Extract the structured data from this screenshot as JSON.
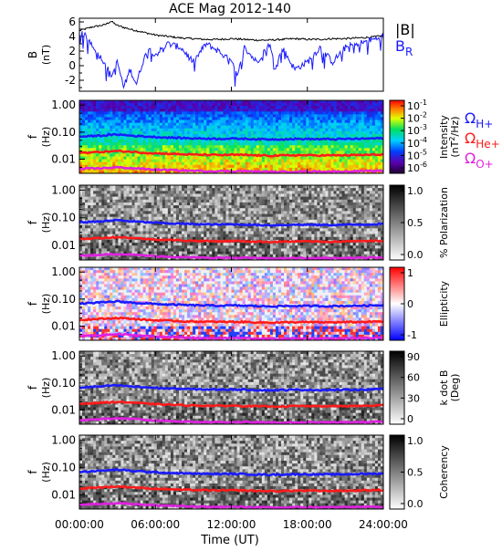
{
  "title": "ACE Mag 2012-140",
  "xlabel": "Time (UT)",
  "x_ticks": [
    "00:00:00",
    "06:00:00",
    "12:00:00",
    "18:00:00",
    "24:00:00"
  ],
  "colors": {
    "B_total": "#000000",
    "B_R": "#1a1aff",
    "omega_H": "#1a1aff",
    "omega_He": "#ff1a1a",
    "omega_O": "#e020e0"
  },
  "chart_data": [
    {
      "type": "line",
      "panel": "magnetic-field",
      "ylabel_main": "B",
      "ylabel_unit": "(nT)",
      "y_ticks": [
        "6",
        "4",
        "2",
        "0",
        "-2"
      ],
      "ylim": [
        -3.5,
        6.5
      ],
      "x_range_hours": [
        0,
        24
      ],
      "legend": [
        {
          "label": "|B|",
          "sub": "",
          "color_key": "B_total"
        },
        {
          "label": "B",
          "sub": "R",
          "color_key": "B_R"
        }
      ],
      "series": [
        {
          "name": "|B|",
          "x_hours": [
            0,
            1,
            2,
            2.5,
            3,
            4,
            5,
            6,
            7,
            8,
            9,
            10,
            11,
            12,
            13,
            14,
            15,
            16,
            17,
            18,
            19,
            20,
            21,
            22,
            23,
            24
          ],
          "values": [
            4.8,
            5.3,
            5.6,
            6.1,
            5.5,
            5.0,
            4.6,
            4.2,
            4.0,
            3.8,
            3.7,
            3.6,
            3.6,
            3.7,
            3.6,
            3.5,
            3.5,
            3.6,
            3.7,
            3.6,
            3.6,
            3.7,
            3.7,
            3.8,
            3.9,
            4.1
          ]
        },
        {
          "name": "B_R",
          "x_hours": [
            0,
            0.5,
            1,
            1.5,
            2,
            2.5,
            3,
            3.5,
            4,
            4.5,
            5,
            5.5,
            6,
            7,
            8,
            9,
            10,
            11,
            12,
            12.5,
            13,
            14,
            15,
            15.5,
            16,
            17,
            18,
            19,
            20,
            21,
            22,
            23,
            24
          ],
          "values": [
            4.5,
            4.0,
            3.0,
            1.5,
            0.5,
            -1.5,
            0.5,
            -3.0,
            -0.5,
            -2.5,
            0.5,
            2.5,
            1.5,
            3.0,
            2.5,
            0.5,
            3.0,
            2.0,
            0.5,
            -1.5,
            2.5,
            0.5,
            3.0,
            -0.5,
            2.5,
            -0.5,
            0.5,
            2.5,
            0.5,
            2.5,
            3.0,
            3.5,
            4.0
          ]
        }
      ]
    },
    {
      "type": "heatmap",
      "panel": "intensity",
      "ylabel_main": "f",
      "ylabel_unit": "(Hz)",
      "y_ticks": [
        "1.00",
        "0.10",
        "0.01"
      ],
      "y_scale": "log",
      "colorbar_label_1": "Intensity",
      "colorbar_label_2": "(nT",
      "colorbar_label_sup": "2",
      "colorbar_label_3": "/Hz)",
      "colorbar_ticks": [
        {
          "base": "10",
          "exp": "-1"
        },
        {
          "base": "10",
          "exp": "-2"
        },
        {
          "base": "10",
          "exp": "-3"
        },
        {
          "base": "10",
          "exp": "-4"
        },
        {
          "base": "10",
          "exp": "-5"
        },
        {
          "base": "10",
          "exp": "-6"
        }
      ],
      "colormap": "rainbow",
      "legend": [
        {
          "label": "Ω",
          "sub": "H+",
          "color_key": "omega_H"
        },
        {
          "label": "Ω",
          "sub": "He+",
          "color_key": "omega_He"
        },
        {
          "label": "Ω",
          "sub": "O+",
          "color_key": "omega_O"
        }
      ]
    },
    {
      "type": "heatmap",
      "panel": "polarization",
      "ylabel_main": "f",
      "ylabel_unit": "(Hz)",
      "y_ticks": [
        "1.00",
        "0.10",
        "0.01"
      ],
      "colorbar_label": "% Polarization",
      "colorbar_ticks": [
        "1.0",
        "0.5",
        "0.0"
      ],
      "colormap": "gray"
    },
    {
      "type": "heatmap",
      "panel": "ellipticity",
      "ylabel_main": "f",
      "ylabel_unit": "(Hz)",
      "y_ticks": [
        "1.00",
        "0.10",
        "0.01"
      ],
      "colorbar_label": "Ellipticity",
      "colorbar_ticks": [
        "1",
        "0",
        "-1"
      ],
      "colormap": "blue-white-red"
    },
    {
      "type": "heatmap",
      "panel": "k-dot-b",
      "ylabel_main": "f",
      "ylabel_unit": "(Hz)",
      "y_ticks": [
        "1.00",
        "0.10",
        "0.01"
      ],
      "colorbar_label": "k dot B",
      "colorbar_unit": "(Deg)",
      "colorbar_ticks": [
        "90",
        "60",
        "30",
        "0"
      ],
      "colormap": "gray"
    },
    {
      "type": "heatmap",
      "panel": "coherency",
      "ylabel_main": "f",
      "ylabel_unit": "(Hz)",
      "y_ticks": [
        "1.00",
        "0.10",
        "0.01"
      ],
      "colorbar_label": "Coherency",
      "colorbar_ticks": [
        "1.0",
        "0.5",
        "0.0"
      ],
      "colormap": "gray"
    }
  ],
  "gyrofrequency_lines": {
    "x_hours": [
      0,
      1,
      2,
      3,
      4,
      5,
      6,
      7,
      8,
      9,
      10,
      11,
      12,
      13,
      14,
      15,
      16,
      17,
      18,
      19,
      20,
      21,
      22,
      23,
      24
    ],
    "omega_H_hz": [
      0.068,
      0.072,
      0.076,
      0.082,
      0.075,
      0.07,
      0.066,
      0.063,
      0.061,
      0.059,
      0.058,
      0.057,
      0.058,
      0.057,
      0.055,
      0.054,
      0.055,
      0.056,
      0.056,
      0.055,
      0.055,
      0.056,
      0.057,
      0.058,
      0.06
    ],
    "omega_He_hz": [
      0.017,
      0.018,
      0.019,
      0.02,
      0.019,
      0.0175,
      0.0165,
      0.016,
      0.0152,
      0.0148,
      0.0145,
      0.0143,
      0.0145,
      0.0143,
      0.0138,
      0.0135,
      0.0137,
      0.014,
      0.014,
      0.0138,
      0.0138,
      0.014,
      0.0142,
      0.0145,
      0.015
    ],
    "omega_O_hz": [
      0.0043,
      0.0045,
      0.0047,
      0.005,
      0.0047,
      0.0044,
      0.0041,
      0.004,
      0.0038,
      0.0037,
      0.0036,
      0.0036,
      0.0036,
      0.0036,
      0.0035,
      0.0034,
      0.0034,
      0.0035,
      0.0035,
      0.0035,
      0.0035,
      0.0035,
      0.0036,
      0.0036,
      0.0037
    ]
  }
}
